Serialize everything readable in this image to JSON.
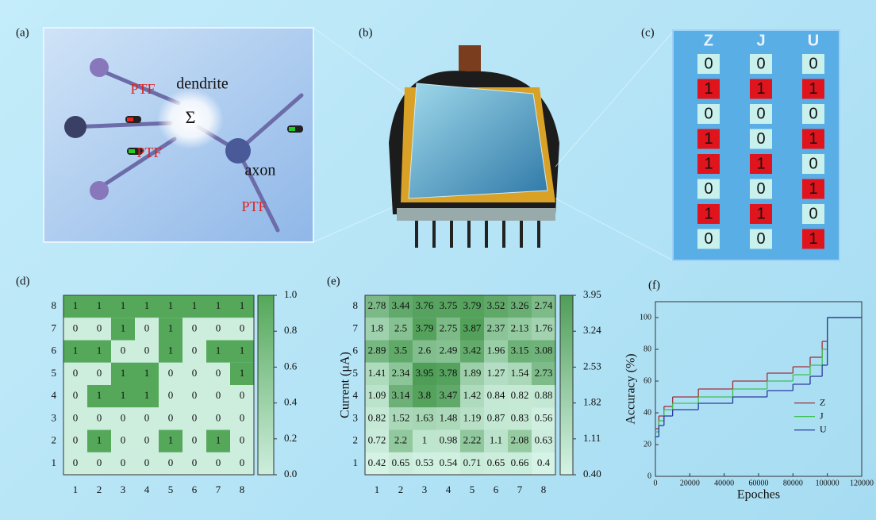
{
  "panel_labels": [
    "(a)",
    "(b)",
    "(c)",
    "(d)",
    "(e)",
    "(f)"
  ],
  "illustration": {
    "sum": "Σ",
    "dendrite": "dendrite",
    "axon": "axon",
    "ptf": [
      "PTF",
      "PTF",
      "PTF"
    ]
  },
  "code_table": {
    "columns": [
      "Z",
      "J",
      "U"
    ],
    "rows": [
      [
        0,
        0,
        0
      ],
      [
        1,
        1,
        1
      ],
      [
        0,
        0,
        0
      ],
      [
        1,
        0,
        1
      ],
      [
        1,
        1,
        0
      ],
      [
        0,
        0,
        1
      ],
      [
        1,
        1,
        0
      ],
      [
        0,
        0,
        1
      ]
    ]
  },
  "chart_data": [
    {
      "type": "heatmap",
      "x": [
        1,
        2,
        3,
        4,
        5,
        6,
        7,
        8
      ],
      "y": [
        8,
        7,
        6,
        5,
        4,
        3,
        2,
        1
      ],
      "values": [
        [
          1,
          1,
          1,
          1,
          1,
          1,
          1,
          1
        ],
        [
          0,
          0,
          1,
          0,
          1,
          0,
          0,
          0
        ],
        [
          1,
          1,
          0,
          0,
          1,
          0,
          1,
          1
        ],
        [
          0,
          0,
          1,
          1,
          0,
          0,
          0,
          1
        ],
        [
          0,
          1,
          1,
          1,
          0,
          0,
          0,
          0
        ],
        [
          0,
          0,
          0,
          0,
          0,
          0,
          0,
          0
        ],
        [
          0,
          1,
          0,
          0,
          1,
          0,
          1,
          0
        ],
        [
          0,
          0,
          0,
          0,
          0,
          0,
          0,
          0
        ]
      ],
      "zlim": [
        0,
        1
      ],
      "zticks": [
        {
          "value": 0,
          "label": "0.0"
        },
        0.2,
        0.4,
        0.6,
        0.8,
        {
          "value": 1,
          "label": "1.0"
        }
      ],
      "colors": [
        "#cdeedd",
        "#55a85a"
      ]
    },
    {
      "type": "heatmap",
      "ylabel": "Current (μA)",
      "x": [
        1,
        2,
        3,
        4,
        5,
        6,
        7,
        8
      ],
      "y": [
        8,
        7,
        6,
        5,
        4,
        3,
        2,
        1
      ],
      "values": [
        [
          2.78,
          3.44,
          3.76,
          3.75,
          3.79,
          3.52,
          3.26,
          2.74
        ],
        [
          1.8,
          2.5,
          3.79,
          2.75,
          3.87,
          2.37,
          2.13,
          1.76
        ],
        [
          2.89,
          3.5,
          2.6,
          2.49,
          3.42,
          1.96,
          3.15,
          3.08
        ],
        [
          1.41,
          2.34,
          3.95,
          3.78,
          1.89,
          1.27,
          1.54,
          2.73
        ],
        [
          1.09,
          3.14,
          3.8,
          3.47,
          1.42,
          0.84,
          0.82,
          0.88
        ],
        [
          0.82,
          1.52,
          1.63,
          1.48,
          1.19,
          0.87,
          0.83,
          0.56
        ],
        [
          0.72,
          2.2,
          1,
          0.98,
          2.22,
          1.1,
          2.08,
          0.63
        ],
        [
          0.42,
          0.65,
          0.53,
          0.54,
          0.71,
          0.65,
          0.66,
          0.4
        ]
      ],
      "zlim": [
        0.4,
        3.95
      ],
      "zticks": [
        {
          "value": 0.4,
          "label": "0.40"
        },
        1.11,
        1.82,
        2.53,
        3.24,
        3.95
      ],
      "colors": [
        "#d5f3e6",
        "#4f9e57"
      ]
    },
    {
      "type": "step",
      "xlabel": "Epoches",
      "ylabel": "Accuracy (%)",
      "x": [
        0,
        2000,
        5000,
        10000,
        25000,
        45000,
        65000,
        80000,
        90000,
        97000,
        100000,
        120000
      ],
      "series": [
        {
          "name": "Z",
          "color": "#a0303a",
          "values": [
            30,
            38,
            44,
            50,
            55,
            60,
            65,
            69,
            75,
            85,
            100,
            100
          ]
        },
        {
          "name": "J",
          "color": "#3ec04e",
          "values": [
            28,
            35,
            42,
            46,
            50,
            55,
            60,
            64,
            70,
            80,
            100,
            100
          ]
        },
        {
          "name": "U",
          "color": "#2a3aa0",
          "values": [
            25,
            32,
            38,
            42,
            46,
            50,
            54,
            58,
            63,
            70,
            100,
            100
          ]
        }
      ],
      "xlim": [
        0,
        120000
      ],
      "xticks": [
        0,
        20000,
        40000,
        60000,
        80000,
        100000,
        120000
      ],
      "ylim": [
        0,
        110
      ],
      "yticks": [
        0,
        20,
        40,
        60,
        80,
        100
      ],
      "legend": "center right"
    }
  ]
}
